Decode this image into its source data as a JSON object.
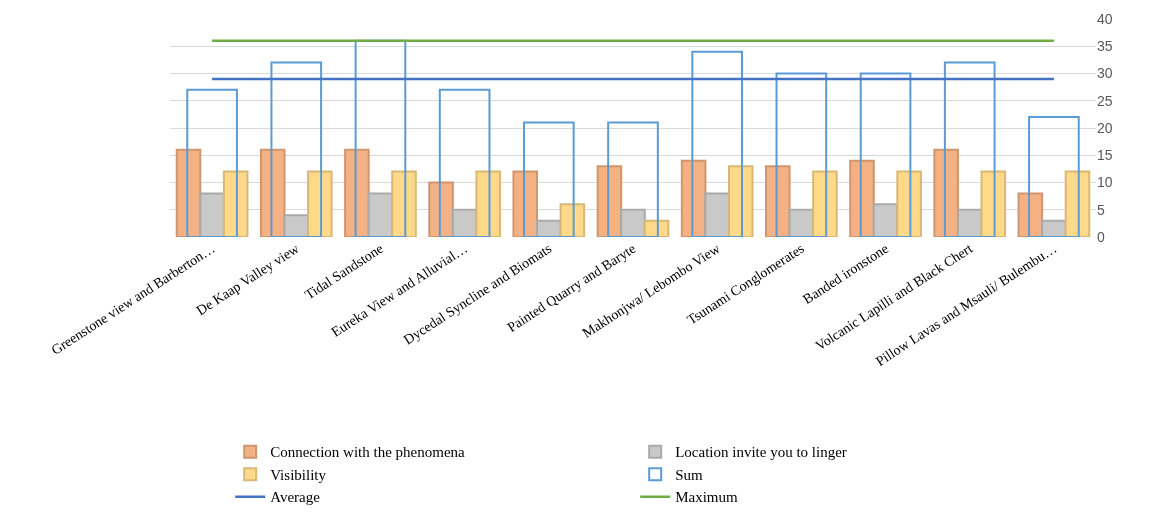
{
  "chart_data": {
    "type": "bar",
    "categories": [
      "Greenstone view and Barberton…",
      "De Kaap Valley view",
      "Tidal Sandstone",
      "Eureka View and Alluvial…",
      "Dycedal Syncline and Biomats",
      "Painted Quarry and Baryte",
      "Makhonjwa/ Lebombo View",
      "Tsunami Conglomerates",
      "Banded ironstone",
      "Volcanic Lapilli and Black Chert",
      "Pillow Lavas and Msauli/ Bulembu…"
    ],
    "series": [
      {
        "name": "Connection with the phenomena",
        "color": "#f4b183",
        "values": [
          16,
          16,
          16,
          10,
          12,
          13,
          14,
          13,
          14,
          16,
          8
        ]
      },
      {
        "name": "Location invite you to linger",
        "color": "#c9c9c9",
        "values": [
          8,
          4,
          8,
          5,
          3,
          5,
          8,
          5,
          6,
          5,
          3
        ]
      },
      {
        "name": "Visibility",
        "color": "#ffd98a",
        "values": [
          12,
          12,
          12,
          12,
          6,
          3,
          13,
          12,
          12,
          12,
          12
        ]
      },
      {
        "name": "Sum",
        "color": "#5b9bd5",
        "values": [
          27,
          32,
          36,
          27,
          21,
          21,
          34,
          30,
          30,
          32,
          22
        ]
      },
      {
        "name": "Average",
        "type": "line",
        "color": "#4472c4",
        "values": [
          29,
          29,
          29,
          29,
          29,
          29,
          29,
          29,
          29,
          29,
          29
        ]
      },
      {
        "name": "Maximum",
        "type": "line",
        "color": "#70ad47",
        "values": [
          36,
          36,
          36,
          36,
          36,
          36,
          36,
          36,
          36,
          36,
          36
        ]
      }
    ],
    "ylim": [
      0,
      40
    ],
    "yticks": [
      0,
      5,
      10,
      15,
      20,
      25,
      30,
      35,
      40
    ],
    "grid": "y",
    "legend": "bottom",
    "marker": "none"
  }
}
